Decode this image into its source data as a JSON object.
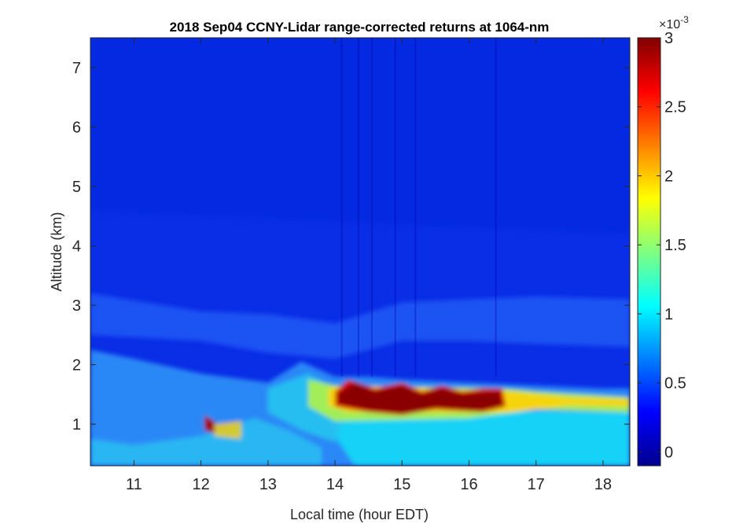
{
  "chart_data": {
    "type": "heatmap",
    "title": "2018 Sep04 CCNY-Lidar range-corrected returns at 1064-nm",
    "xlabel": "Local time (hour EDT)",
    "ylabel": "Altitude (km)",
    "xlim": [
      10.35,
      18.4
    ],
    "ylim": [
      0.3,
      7.5
    ],
    "x_ticks": [
      11,
      12,
      13,
      14,
      15,
      16,
      17,
      18
    ],
    "y_ticks": [
      1,
      2,
      3,
      4,
      5,
      6,
      7
    ],
    "colormap": "jet",
    "colorbar": {
      "range": [
        -0.1,
        3.0
      ],
      "ticks": [
        0,
        0.5,
        1,
        1.5,
        2,
        2.5,
        3
      ],
      "tick_labels": [
        "0",
        "0.5",
        "1",
        "1.5",
        "2",
        "2.5",
        "3"
      ],
      "multiplier_base": "×10",
      "multiplier_exp": "-3"
    },
    "features": [
      {
        "name": "boundary-layer-top",
        "times": [
          10.35,
          11,
          12,
          13,
          13.5,
          14,
          14.5,
          15,
          16,
          17,
          18,
          18.4
        ],
        "heights": [
          2.2,
          2.1,
          1.8,
          1.7,
          2.0,
          1.8,
          1.8,
          1.75,
          1.7,
          1.6,
          1.6,
          1.6
        ]
      },
      {
        "name": "cloud-layer",
        "start": 14.0,
        "end": 16.55,
        "base": 1.2,
        "top": 1.75,
        "value_x1e-3": 3.0
      },
      {
        "name": "residual-aerosol-layer",
        "start": 10.35,
        "end": 18.4,
        "base": 2.5,
        "top": 3.0,
        "value_x1e-3": 0.45
      }
    ]
  }
}
